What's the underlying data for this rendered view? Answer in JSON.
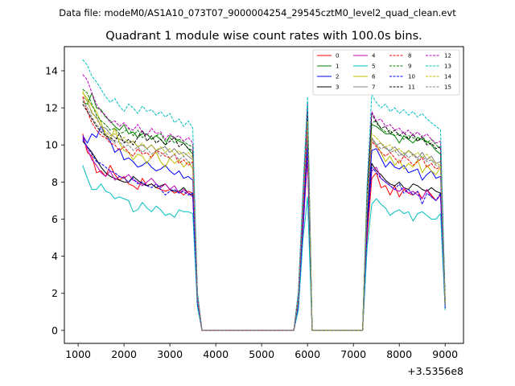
{
  "chart_data": {
    "type": "line",
    "suptitle": "Data file: modeM0/AS1A10_073T07_9000004254_29545cztM0_level2_quad_clean.evt",
    "title": "Quadrant 1 module wise count rates with 100.0s bins.",
    "xlabel": "",
    "ylabel": "",
    "offset_label": "+3.5356e8",
    "xlim": [
      700,
      9400
    ],
    "ylim": [
      -0.7,
      15.3
    ],
    "xticks": [
      1000,
      2000,
      3000,
      4000,
      5000,
      6000,
      7000,
      8000,
      9000
    ],
    "xtick_labels": [
      "1000",
      "2000",
      "3000",
      "4000",
      "5000",
      "6000",
      "7000",
      "8000",
      "9000"
    ],
    "yticks": [
      0,
      2,
      4,
      6,
      8,
      10,
      12,
      14
    ],
    "ytick_labels": [
      "0",
      "2",
      "4",
      "6",
      "8",
      "10",
      "12",
      "14"
    ],
    "legend": {
      "placement": "top-right",
      "columns": 4
    },
    "x": [
      1100,
      1200,
      1300,
      1400,
      1500,
      1600,
      1700,
      1800,
      1900,
      2000,
      2100,
      2200,
      2300,
      2400,
      2500,
      2600,
      2700,
      2800,
      2900,
      3000,
      3100,
      3200,
      3300,
      3400,
      3500,
      3600,
      3700,
      5700,
      5800,
      5900,
      6000,
      6100,
      6200,
      7200,
      7300,
      7400,
      7500,
      7600,
      7700,
      7800,
      7900,
      8000,
      8100,
      8200,
      8300,
      8400,
      8500,
      8600,
      8700,
      8800,
      8900,
      9000
    ],
    "series": [
      {
        "name": "0",
        "color": "#ff0000",
        "dash": "solid",
        "values": [
          10.6,
          9.6,
          9.4,
          8.5,
          8.6,
          8.3,
          8.9,
          8.4,
          8.1,
          8.3,
          7.9,
          7.8,
          7.6,
          8.2,
          7.8,
          7.9,
          7.7,
          7.6,
          7.5,
          7.6,
          7.4,
          7.5,
          7.3,
          7.5,
          7.4,
          1.5,
          0,
          0,
          1.2,
          5.5,
          9.3,
          0,
          0,
          0,
          5.0,
          8.2,
          8.5,
          7.7,
          7.8,
          7.3,
          7.8,
          7.2,
          7.6,
          7.4,
          7.3,
          7.5,
          7.1,
          7.6,
          7.3,
          7.0,
          7.3,
          1.2
        ]
      },
      {
        "name": "1",
        "color": "#008000",
        "dash": "solid",
        "values": [
          12.3,
          12.2,
          12.8,
          12.0,
          11.9,
          11.5,
          11.3,
          11.0,
          10.8,
          11.1,
          10.6,
          10.7,
          10.4,
          10.6,
          10.6,
          10.3,
          10.5,
          10.3,
          10.0,
          10.5,
          10.4,
          10.2,
          10.1,
          9.8,
          9.5,
          2.0,
          0,
          0,
          2.0,
          7.0,
          11.9,
          0,
          0,
          0,
          7.6,
          11.1,
          11.0,
          10.8,
          10.6,
          10.6,
          10.5,
          10.1,
          10.5,
          10.3,
          10.1,
          10.4,
          10.3,
          10.2,
          10.0,
          9.7,
          9.5,
          1.6
        ]
      },
      {
        "name": "2",
        "color": "#0000ff",
        "dash": "solid",
        "values": [
          10.5,
          10.1,
          10.6,
          10.4,
          11.0,
          10.5,
          10.2,
          9.6,
          9.8,
          9.2,
          9.3,
          9.1,
          8.8,
          8.9,
          9.1,
          8.8,
          8.6,
          8.7,
          8.9,
          8.6,
          8.4,
          8.6,
          8.2,
          8.3,
          8.1,
          1.8,
          0,
          0,
          1.5,
          6.0,
          10.6,
          0,
          0,
          0,
          6.0,
          9.7,
          9.8,
          9.3,
          8.8,
          9.1,
          8.8,
          8.7,
          8.9,
          8.5,
          8.6,
          8.7,
          8.1,
          8.4,
          8.6,
          8.2,
          8.3,
          1.4
        ]
      },
      {
        "name": "3",
        "color": "#000000",
        "dash": "solid",
        "values": [
          10.2,
          9.9,
          9.6,
          9.2,
          8.8,
          8.5,
          8.3,
          8.2,
          8.1,
          8.0,
          8.0,
          8.3,
          8.1,
          7.9,
          7.8,
          7.9,
          7.7,
          7.8,
          7.9,
          7.6,
          7.5,
          7.5,
          7.7,
          7.4,
          7.3,
          1.5,
          0,
          0,
          1.3,
          5.5,
          9.8,
          0,
          0,
          0,
          5.8,
          9.0,
          8.6,
          8.4,
          8.1,
          7.9,
          7.8,
          8.0,
          7.7,
          7.6,
          7.9,
          7.8,
          7.6,
          7.5,
          7.7,
          7.5,
          7.4,
          1.3
        ]
      },
      {
        "name": "4",
        "color": "#bf00bf",
        "dash": "solid",
        "values": [
          10.4,
          9.8,
          9.2,
          8.9,
          8.5,
          8.3,
          8.6,
          8.1,
          8.3,
          8.2,
          8.4,
          8.1,
          8.0,
          7.8,
          8.0,
          8.2,
          7.9,
          7.7,
          7.9,
          7.6,
          7.8,
          7.4,
          7.6,
          7.4,
          7.2,
          1.5,
          0,
          0,
          1.3,
          5.3,
          9.6,
          0,
          0,
          0,
          5.5,
          8.6,
          8.8,
          8.2,
          8.0,
          7.8,
          7.6,
          7.5,
          7.7,
          7.4,
          7.5,
          7.3,
          7.1,
          7.6,
          7.2,
          7.0,
          7.3,
          1.2
        ]
      },
      {
        "name": "5",
        "color": "#00bfbf",
        "dash": "solid",
        "values": [
          8.9,
          8.2,
          7.6,
          7.6,
          7.9,
          7.5,
          7.4,
          7.1,
          7.2,
          7.1,
          7.0,
          6.4,
          6.5,
          6.9,
          6.6,
          6.4,
          6.7,
          6.5,
          6.2,
          6.3,
          6.1,
          6.5,
          6.4,
          6.4,
          6.3,
          1.3,
          0,
          0,
          1.1,
          4.9,
          7.2,
          0,
          0,
          0,
          4.5,
          6.8,
          7.1,
          6.8,
          6.6,
          6.2,
          6.4,
          6.5,
          6.3,
          6.4,
          5.9,
          6.3,
          6.4,
          6.2,
          6.0,
          6.0,
          6.3,
          1.1
        ]
      },
      {
        "name": "6",
        "color": "#bfbf00",
        "dash": "solid",
        "values": [
          12.8,
          12.5,
          12.1,
          11.8,
          11.2,
          10.5,
          10.3,
          10.9,
          10.1,
          9.7,
          9.6,
          9.2,
          9.5,
          9.4,
          9.0,
          9.4,
          9.6,
          9.1,
          8.8,
          9.3,
          9.0,
          9.2,
          8.8,
          9.1,
          8.7,
          1.7,
          0,
          0,
          1.6,
          6.5,
          11.0,
          0,
          0,
          0,
          6.8,
          10.4,
          10.0,
          9.6,
          9.1,
          9.4,
          8.9,
          9.2,
          8.7,
          9.0,
          8.8,
          9.2,
          8.5,
          8.9,
          8.6,
          8.4,
          8.8,
          1.4
        ]
      },
      {
        "name": "7",
        "color": "#808080",
        "dash": "solid",
        "values": [
          12.6,
          12.4,
          11.7,
          11.5,
          11.0,
          10.9,
          10.6,
          10.4,
          10.3,
          10.2,
          10.1,
          10.2,
          9.9,
          10.0,
          9.8,
          10.0,
          9.7,
          9.8,
          9.9,
          9.6,
          9.8,
          9.5,
          9.6,
          9.4,
          9.2,
          1.9,
          0,
          0,
          1.8,
          6.8,
          11.4,
          0,
          0,
          0,
          7.0,
          10.4,
          10.0,
          10.1,
          9.8,
          9.7,
          9.9,
          9.6,
          9.4,
          9.7,
          9.5,
          9.3,
          9.6,
          9.2,
          9.4,
          9.0,
          9.1,
          1.5
        ]
      },
      {
        "name": "8",
        "color": "#ff0000",
        "dash": "dashed",
        "values": [
          12.6,
          11.8,
          11.2,
          10.8,
          10.5,
          10.4,
          10.1,
          10.0,
          9.7,
          9.9,
          9.6,
          9.4,
          9.8,
          9.5,
          9.6,
          9.3,
          9.7,
          9.6,
          9.4,
          9.3,
          9.5,
          9.0,
          9.2,
          8.9,
          9.1,
          1.8,
          0,
          0,
          1.7,
          6.5,
          11.0,
          0,
          0,
          0,
          6.9,
          10.2,
          9.9,
          9.6,
          9.4,
          9.6,
          9.3,
          9.0,
          9.4,
          9.2,
          8.9,
          9.1,
          9.3,
          8.8,
          9.0,
          8.7,
          8.8,
          1.4
        ]
      },
      {
        "name": "9",
        "color": "#008000",
        "dash": "dashed",
        "values": [
          13.0,
          12.8,
          12.2,
          11.6,
          11.3,
          11.1,
          10.8,
          10.9,
          10.6,
          10.7,
          10.9,
          10.5,
          10.8,
          10.4,
          10.6,
          10.3,
          10.5,
          10.6,
          10.2,
          10.4,
          10.1,
          10.3,
          10.2,
          10.0,
          9.9,
          2.0,
          0,
          0,
          2.0,
          7.2,
          12.2,
          0,
          0,
          0,
          7.5,
          11.2,
          11.3,
          10.9,
          10.7,
          10.8,
          10.5,
          10.6,
          10.3,
          10.5,
          10.4,
          10.2,
          10.5,
          10.1,
          10.3,
          10.0,
          9.8,
          1.6
        ]
      },
      {
        "name": "10",
        "color": "#0000ff",
        "dash": "dashed",
        "values": [
          10.3,
          9.9,
          9.5,
          9.1,
          9.0,
          8.8,
          8.6,
          8.5,
          8.3,
          8.2,
          8.0,
          8.2,
          7.9,
          8.0,
          7.8,
          7.7,
          7.9,
          7.6,
          7.3,
          7.5,
          7.6,
          7.4,
          7.5,
          7.3,
          7.4,
          1.5,
          0,
          0,
          1.4,
          5.6,
          9.9,
          0,
          0,
          0,
          5.6,
          8.8,
          8.5,
          8.2,
          8.0,
          7.8,
          7.6,
          7.9,
          7.4,
          7.6,
          7.3,
          7.5,
          6.8,
          7.4,
          7.2,
          7.0,
          7.4,
          1.2
        ]
      },
      {
        "name": "11",
        "color": "#000000",
        "dash": "dashed",
        "values": [
          12.2,
          11.8,
          11.4,
          11.0,
          10.7,
          10.5,
          10.4,
          10.2,
          10.6,
          10.1,
          10.3,
          10.0,
          10.4,
          10.8,
          10.2,
          10.5,
          10.1,
          10.3,
          10.0,
          10.2,
          10.4,
          9.9,
          10.1,
          9.8,
          9.7,
          1.9,
          0,
          0,
          1.9,
          7.0,
          11.8,
          0,
          0,
          0,
          7.4,
          11.7,
          11.2,
          10.9,
          11.0,
          10.6,
          10.8,
          10.5,
          10.7,
          10.3,
          10.6,
          10.2,
          10.4,
          10.0,
          10.1,
          9.8,
          9.9,
          1.6
        ]
      },
      {
        "name": "12",
        "color": "#bf00bf",
        "dash": "dashed",
        "values": [
          13.8,
          13.5,
          12.8,
          12.2,
          11.8,
          11.6,
          11.2,
          11.3,
          11.0,
          11.2,
          10.9,
          10.8,
          11.1,
          10.7,
          10.5,
          10.9,
          10.6,
          10.7,
          10.3,
          10.6,
          10.4,
          10.5,
          10.2,
          10.4,
          10.1,
          2.0,
          0,
          0,
          2.0,
          7.3,
          12.3,
          0,
          0,
          0,
          7.8,
          11.8,
          11.3,
          11.4,
          11.0,
          11.1,
          10.8,
          10.9,
          10.6,
          10.8,
          10.5,
          10.7,
          10.4,
          10.6,
          10.3,
          10.1,
          10.2,
          1.7
        ]
      },
      {
        "name": "13",
        "color": "#00bfbf",
        "dash": "dashed",
        "values": [
          14.6,
          14.3,
          13.7,
          13.4,
          13.0,
          12.6,
          12.3,
          12.5,
          12.1,
          11.8,
          12.2,
          12.0,
          11.7,
          12.1,
          11.8,
          11.9,
          11.6,
          11.8,
          11.5,
          11.7,
          11.2,
          11.4,
          11.0,
          11.3,
          10.9,
          2.1,
          0,
          0,
          2.1,
          7.6,
          12.6,
          0,
          0,
          0,
          8.0,
          12.7,
          12.3,
          12.0,
          12.2,
          11.8,
          12.0,
          11.7,
          11.9,
          11.6,
          11.8,
          11.5,
          11.7,
          11.4,
          11.2,
          11.0,
          10.8,
          1.7
        ]
      },
      {
        "name": "14",
        "color": "#bfbf00",
        "dash": "dashed",
        "values": [
          12.9,
          12.3,
          11.8,
          11.4,
          11.0,
          10.7,
          10.5,
          10.6,
          10.3,
          10.4,
          10.1,
          10.2,
          9.9,
          10.1,
          9.8,
          10.0,
          9.7,
          9.9,
          9.6,
          9.8,
          9.5,
          9.7,
          9.4,
          9.6,
          9.3,
          1.8,
          0,
          0,
          1.7,
          6.7,
          11.3,
          0,
          0,
          0,
          7.0,
          10.6,
          10.4,
          10.1,
          9.9,
          10.0,
          9.7,
          9.8,
          9.5,
          9.7,
          9.4,
          9.6,
          9.3,
          9.5,
          9.2,
          9.0,
          8.9,
          1.4
        ]
      },
      {
        "name": "15",
        "color": "#808080",
        "dash": "dashed",
        "values": [
          12.4,
          12.0,
          11.5,
          11.1,
          10.8,
          10.6,
          10.3,
          10.1,
          10.2,
          9.9,
          10.0,
          9.7,
          9.9,
          9.6,
          9.8,
          9.5,
          9.7,
          9.4,
          9.6,
          9.3,
          9.5,
          9.2,
          9.4,
          9.1,
          9.0,
          1.8,
          0,
          0,
          1.6,
          6.6,
          11.1,
          0,
          0,
          0,
          6.9,
          10.3,
          10.0,
          9.8,
          9.9,
          9.6,
          9.7,
          9.4,
          9.6,
          9.3,
          9.5,
          9.2,
          9.4,
          9.1,
          9.2,
          8.9,
          8.8,
          1.4
        ]
      }
    ]
  }
}
